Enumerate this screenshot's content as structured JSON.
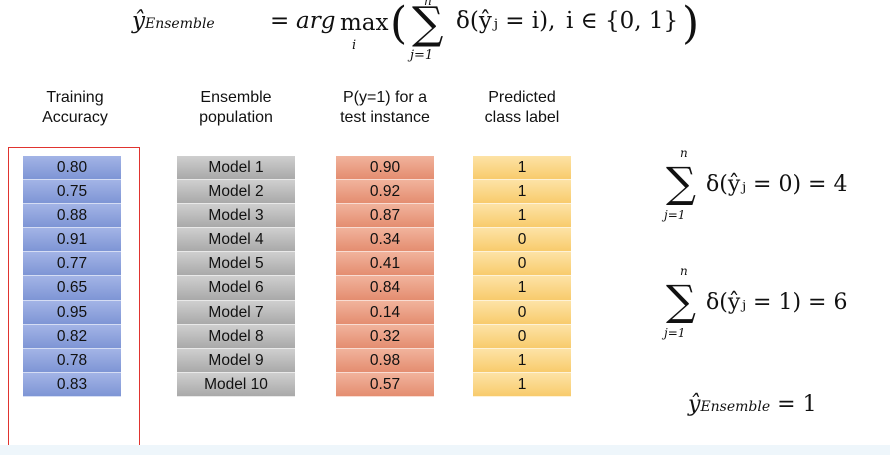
{
  "formula": {
    "lhs_var": "ŷ",
    "lhs_sub": "Ensemble",
    "eq": "=",
    "arg": "arg",
    "max": "max",
    "max_sub": "i",
    "lparen": "(",
    "sigma": "∑",
    "sigma_top": "n",
    "sigma_sub": "j=1",
    "body": "δ(ŷⱼ = i),",
    "domain": "i ∈ {0, 1}",
    "rparen": ")"
  },
  "headers": {
    "accuracy": [
      "Training",
      "Accuracy"
    ],
    "population": [
      "Ensemble",
      "population"
    ],
    "probability": [
      "P(y=1) for a",
      "test instance"
    ],
    "label": [
      "Predicted",
      "class label"
    ]
  },
  "columns": {
    "accuracy": [
      "0.80",
      "0.75",
      "0.88",
      "0.91",
      "0.77",
      "0.65",
      "0.95",
      "0.82",
      "0.78",
      "0.83"
    ],
    "models": [
      "Model 1",
      "Model 2",
      "Model 3",
      "Model 4",
      "Model 5",
      "Model 6",
      "Model 7",
      "Model 8",
      "Model 9",
      "Model 10"
    ],
    "probability": [
      "0.90",
      "0.92",
      "0.87",
      "0.34",
      "0.41",
      "0.84",
      "0.14",
      "0.32",
      "0.98",
      "0.57"
    ],
    "labels": [
      "1",
      "1",
      "1",
      "0",
      "0",
      "1",
      "0",
      "0",
      "1",
      "1"
    ]
  },
  "votes": {
    "sigma": "∑",
    "top": "n",
    "bottom": "j=1",
    "class0": "δ(ŷⱼ = 0) = 4",
    "class1": "δ(ŷⱼ = 1) = 6"
  },
  "result": {
    "var": "ŷ",
    "sub": "Ensemble",
    "eq": "= 1"
  },
  "colors": {
    "accuracy": "#8fa4dd",
    "model": "#bcbcbc",
    "probability": "#eaa086",
    "label": "#fbd88c",
    "frame": "#e0342f"
  }
}
